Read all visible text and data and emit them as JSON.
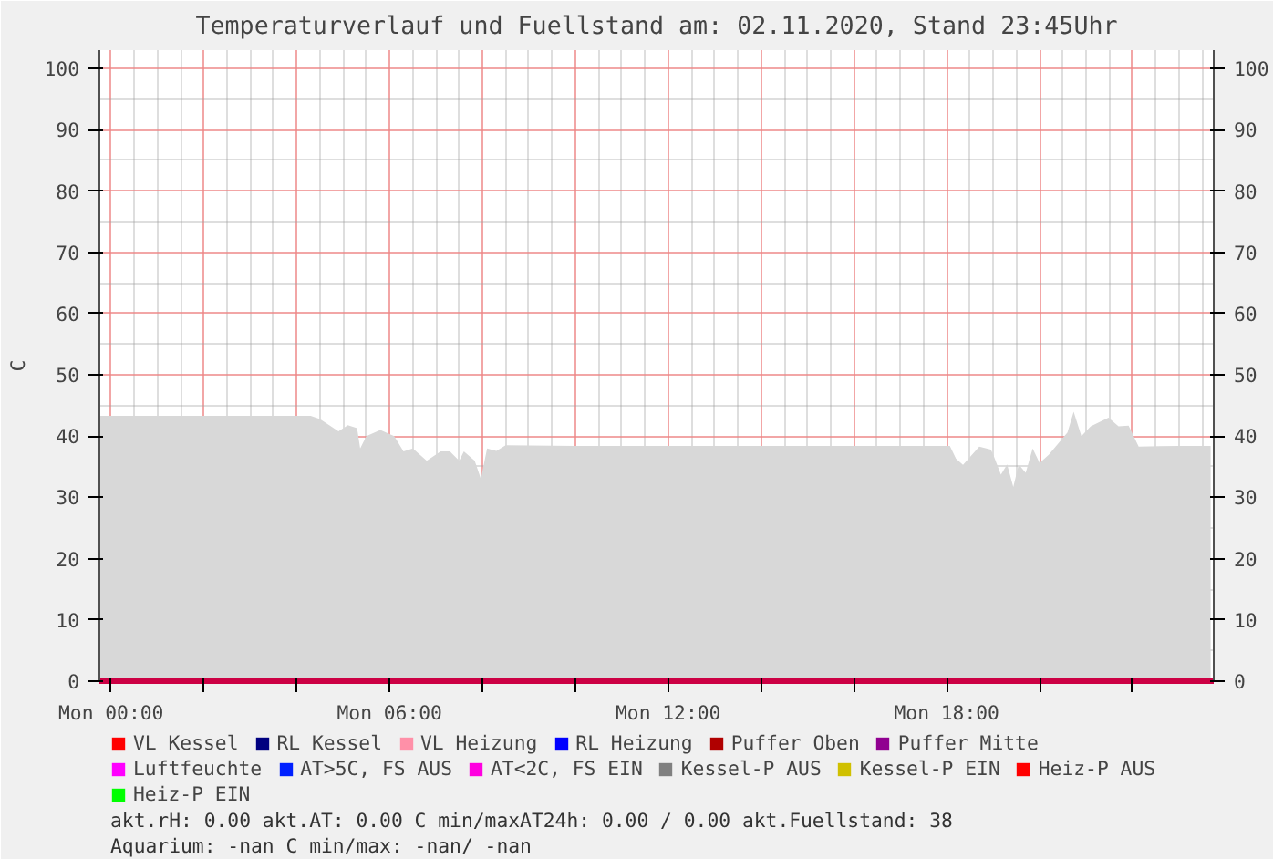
{
  "chart_data": {
    "type": "area",
    "title": "Temperaturverlauf und Fuellstand am: 02.11.2020, Stand 23:45Uhr",
    "ylabel": "C",
    "xlim": [
      "2020-11-01T23:45",
      "2020-11-02T23:45"
    ],
    "xticks": [
      {
        "value": "2020-11-02T00:00",
        "label": "Mon 00:00"
      },
      {
        "value": "2020-11-02T02:00",
        "label": null
      },
      {
        "value": "2020-11-02T04:00",
        "label": null
      },
      {
        "value": "2020-11-02T06:00",
        "label": "Mon 06:00"
      },
      {
        "value": "2020-11-02T08:00",
        "label": null
      },
      {
        "value": "2020-11-02T10:00",
        "label": null
      },
      {
        "value": "2020-11-02T12:00",
        "label": "Mon 12:00"
      },
      {
        "value": "2020-11-02T14:00",
        "label": null
      },
      {
        "value": "2020-11-02T16:00",
        "label": null
      },
      {
        "value": "2020-11-02T18:00",
        "label": "Mon 18:00"
      },
      {
        "value": "2020-11-02T20:00",
        "label": null
      },
      {
        "value": "2020-11-02T22:00",
        "label": null
      }
    ],
    "ylim": [
      0,
      103
    ],
    "yticks": [
      0,
      10,
      20,
      30,
      40,
      50,
      60,
      70,
      80,
      90,
      100
    ],
    "y2lim": [
      0,
      103
    ],
    "y2ticks": [
      0,
      10,
      20,
      30,
      40,
      50,
      60,
      70,
      80,
      90,
      100
    ],
    "grid": true,
    "legend": "bottom",
    "series": [
      {
        "color": "#d8d8d8",
        "x": [
          "2020-11-01T23:45",
          "2020-11-02T01:00",
          "2020-11-02T02:30",
          "2020-11-02T04:18",
          "2020-11-02T04:30",
          "2020-11-02T04:42",
          "2020-11-02T04:54",
          "2020-11-02T05:06",
          "2020-11-02T05:18",
          "2020-11-02T05:22",
          "2020-11-02T05:30",
          "2020-11-02T05:48",
          "2020-11-02T06:06",
          "2020-11-02T06:18",
          "2020-11-02T06:30",
          "2020-11-02T06:48",
          "2020-11-02T07:06",
          "2020-11-02T07:18",
          "2020-11-02T07:30",
          "2020-11-02T07:36",
          "2020-11-02T07:50",
          "2020-11-02T07:58",
          "2020-11-02T08:06",
          "2020-11-02T08:18",
          "2020-11-02T08:30",
          "2020-11-02T10:00",
          "2020-11-02T12:00",
          "2020-11-02T14:00",
          "2020-11-02T16:00",
          "2020-11-02T18:04",
          "2020-11-02T18:12",
          "2020-11-02T18:21",
          "2020-11-02T18:42",
          "2020-11-02T18:57",
          "2020-11-02T19:00",
          "2020-11-02T19:10",
          "2020-11-02T19:18",
          "2020-11-02T19:26",
          "2020-11-02T19:33",
          "2020-11-02T19:42",
          "2020-11-02T19:51",
          "2020-11-02T20:00",
          "2020-11-02T20:12",
          "2020-11-02T20:36",
          "2020-11-02T20:44",
          "2020-11-02T20:54",
          "2020-11-02T21:06",
          "2020-11-02T21:29",
          "2020-11-02T21:42",
          "2020-11-02T21:55",
          "2020-11-02T22:08",
          "2020-11-02T23:00",
          "2020-11-02T23:41"
        ],
        "values": [
          43.3,
          43.3,
          43.3,
          43.3,
          42.8,
          41.8,
          40.8,
          41.8,
          41.3,
          38.0,
          40.0,
          41.0,
          40.0,
          37.5,
          38.0,
          36.0,
          37.5,
          37.5,
          36.0,
          37.5,
          36.0,
          33.0,
          38.0,
          37.6,
          38.5,
          38.4,
          38.4,
          38.4,
          38.4,
          38.4,
          36.3,
          35.3,
          38.3,
          37.8,
          37.0,
          33.7,
          35.4,
          31.7,
          35.4,
          34.0,
          38.0,
          35.6,
          37.0,
          40.6,
          44.0,
          40.0,
          41.6,
          43.0,
          41.6,
          41.7,
          38.3,
          38.4,
          38.4
        ]
      },
      {
        "name": "VL Kessel",
        "color": "#ff0000",
        "values": [
          null
        ]
      },
      {
        "name": "RL Kessel",
        "color": "#000080",
        "values": [
          null
        ]
      },
      {
        "name": "VL Heizung",
        "color": "#ff90a8",
        "values": [
          null
        ]
      },
      {
        "name": "RL Heizung",
        "color": "#0000ff",
        "values": [
          null
        ]
      },
      {
        "name": "Puffer Oben",
        "color": "#b00000",
        "values": [
          null
        ]
      },
      {
        "name": "Puffer Mitte",
        "color": "#900090",
        "values": [
          null
        ]
      },
      {
        "name": "Luftfeuchte",
        "color": "#ff00ff",
        "values": [
          null
        ]
      },
      {
        "name": "AT>5C, FS AUS",
        "color": "#0020ff",
        "values": [
          null
        ]
      },
      {
        "name": "AT<2C, FS EIN",
        "color": "#ff00e0",
        "values": [
          null
        ]
      },
      {
        "name": "Kessel-P AUS",
        "color": "#808080",
        "values": [
          null
        ]
      },
      {
        "name": "Kessel-P EIN",
        "color": "#d0c000",
        "values": [
          null
        ]
      },
      {
        "name": "Heiz-P AUS",
        "color": "#ff0000",
        "values": [
          null
        ]
      },
      {
        "name": "Heiz-P EIN",
        "color": "#00ff00",
        "values": [
          null
        ]
      }
    ],
    "annotations": [
      "akt.rH: 0.00   akt.AT: 0.00 C   min/maxAT24h: 0.00 / 0.00   akt.Fuellstand:   38",
      "Aquarium: -nan C  min/max: -nan/ -nan"
    ]
  }
}
